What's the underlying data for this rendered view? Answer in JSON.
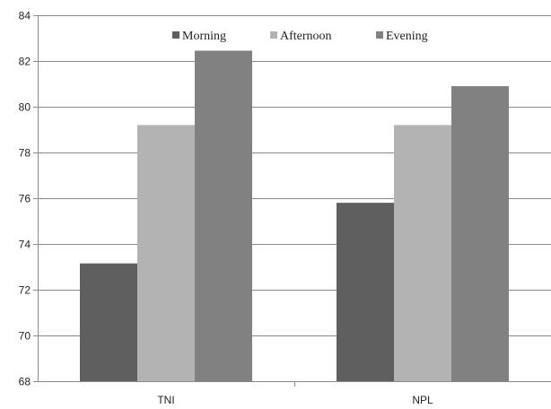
{
  "chart_data": {
    "type": "bar",
    "title": "",
    "xlabel": "",
    "ylabel": "",
    "categories": [
      "TNI",
      "NPL"
    ],
    "series": [
      {
        "name": "Morning",
        "values": [
          73.15,
          75.8
        ],
        "color": "#5f5f5f"
      },
      {
        "name": "Afternoon",
        "values": [
          79.2,
          79.2
        ],
        "color": "#b3b3b3"
      },
      {
        "name": "Evening",
        "values": [
          82.45,
          80.9
        ],
        "color": "#818181"
      }
    ],
    "ylim": [
      68,
      84
    ],
    "yticks": [
      68,
      70,
      72,
      74,
      76,
      78,
      80,
      82,
      84
    ],
    "grid": true,
    "legend_position": "top-center"
  }
}
